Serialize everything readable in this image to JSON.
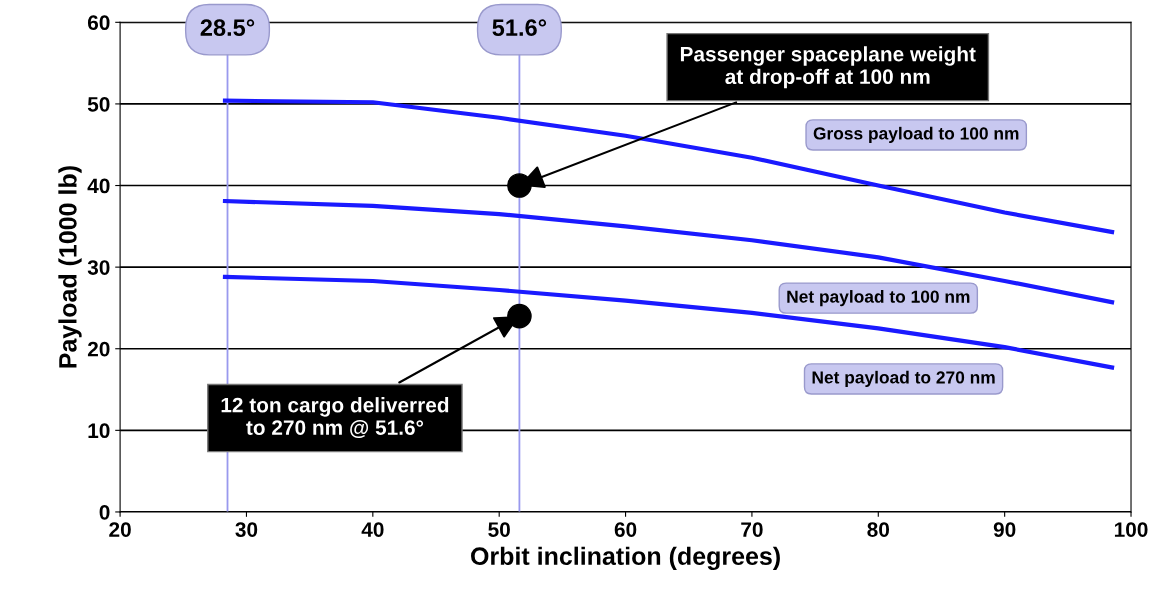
{
  "chart_data": {
    "type": "line",
    "xlabel": "Orbit inclination (degrees)",
    "ylabel": "Payload (1000 lb)",
    "xlim": [
      20,
      100
    ],
    "xticks": [
      20,
      30,
      40,
      50,
      60,
      70,
      80,
      90,
      100
    ],
    "ylim": [
      0,
      60
    ],
    "yticks": [
      0,
      10,
      20,
      30,
      40,
      50,
      60
    ],
    "grid": "y",
    "legend": false,
    "marker": "none",
    "series": [
      {
        "name": "Gross payload to 100 nm",
        "color": "#1a1aff",
        "x": [
          28.3,
          40,
          50,
          60,
          70,
          80,
          90,
          98.5
        ],
        "values": [
          50.4,
          50.2,
          48.3,
          46.1,
          43.4,
          40,
          36.7,
          34.3
        ]
      },
      {
        "name": "Net payload to 100 nm",
        "color": "#1a1aff",
        "x": [
          28.3,
          40,
          50,
          60,
          70,
          80,
          90,
          98.5
        ],
        "values": [
          38.1,
          37.5,
          36.5,
          35,
          33.3,
          31.2,
          28.3,
          25.7
        ]
      },
      {
        "name": "Net payload to 270 nm",
        "color": "#1a1aff",
        "x": [
          28.3,
          40,
          50,
          60,
          70,
          80,
          90,
          98.5
        ],
        "values": [
          28.8,
          28.3,
          27.2,
          25.9,
          24.4,
          22.5,
          20.2,
          17.7
        ]
      },
      {
        "type": "scatter",
        "color": "#000000",
        "x": [
          51.6,
          51.6
        ],
        "values": [
          40,
          24
        ],
        "marker": "circle"
      }
    ],
    "ref_lines": [
      {
        "axis": "x",
        "value": 28.5,
        "label": "28.5°",
        "color": "#9999ee"
      },
      {
        "axis": "x",
        "value": 51.6,
        "label": "51.6°",
        "color": "#9999ee"
      }
    ],
    "annotations": [
      {
        "text": "Passenger spaceplane weight\nat drop-off at 100 nm",
        "x": 51.6,
        "y": 40
      },
      {
        "text": "12 ton cargo deliverred\nto 270 nm @ 51.6°",
        "x": 51.6,
        "y": 24
      }
    ]
  }
}
